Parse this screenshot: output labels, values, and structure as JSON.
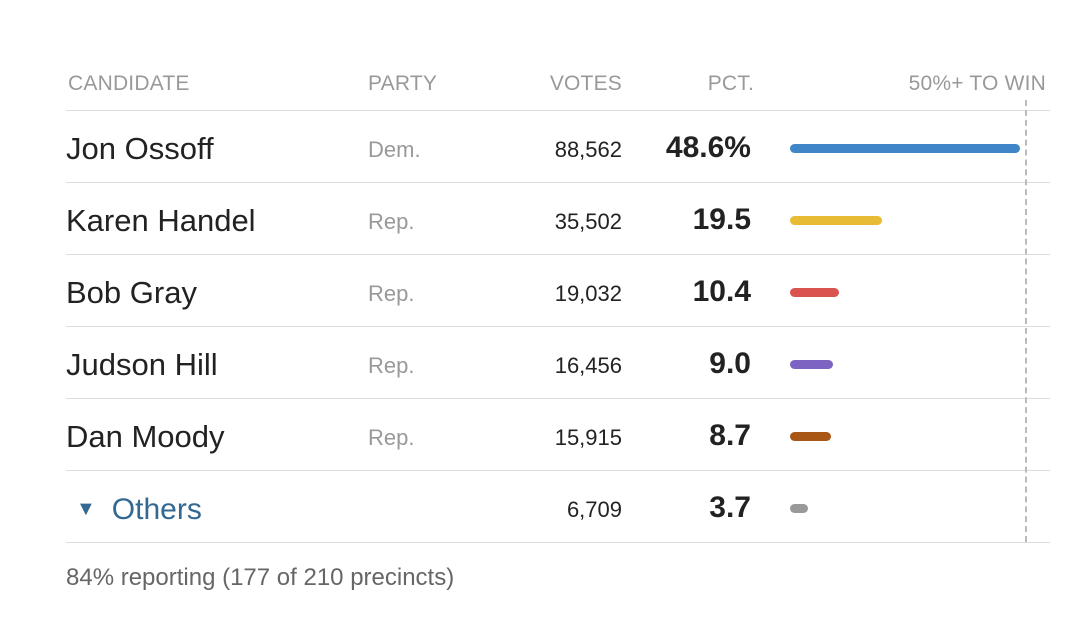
{
  "header": {
    "candidate": "CANDIDATE",
    "party": "PARTY",
    "votes": "VOTES",
    "pct": "PCT.",
    "win": "50%+ TO WIN"
  },
  "rows": [
    {
      "name": "Jon Ossoff",
      "party": "Dem.",
      "votes": "88,562",
      "pct_label": "48.6%",
      "pct": 48.6,
      "color": "#3f86c8"
    },
    {
      "name": "Karen Handel",
      "party": "Rep.",
      "votes": "35,502",
      "pct_label": "19.5",
      "pct": 19.5,
      "color": "#e8bb35"
    },
    {
      "name": "Bob Gray",
      "party": "Rep.",
      "votes": "19,032",
      "pct_label": "10.4",
      "pct": 10.4,
      "color": "#d9534f"
    },
    {
      "name": "Judson Hill",
      "party": "Rep.",
      "votes": "16,456",
      "pct_label": "9.0",
      "pct": 9.0,
      "color": "#7b64c2"
    },
    {
      "name": "Dan Moody",
      "party": "Rep.",
      "votes": "15,915",
      "pct_label": "8.7",
      "pct": 8.7,
      "color": "#a95717"
    }
  ],
  "others": {
    "toggle_icon": "▼",
    "label": "Others",
    "votes": "6,709",
    "pct_label": "3.7",
    "pct": 3.7,
    "color": "#999999"
  },
  "reporting": "84% reporting (177 of 210 precincts)",
  "chart_data": {
    "type": "bar",
    "categories": [
      "Jon Ossoff",
      "Karen Handel",
      "Bob Gray",
      "Judson Hill",
      "Dan Moody",
      "Others"
    ],
    "values": [
      48.6,
      19.5,
      10.4,
      9.0,
      8.7,
      3.7
    ],
    "votes": [
      88562,
      35502,
      19032,
      16456,
      15915,
      6709
    ],
    "threshold": 50,
    "threshold_label": "50%+ TO WIN",
    "xlim": [
      0,
      50
    ]
  }
}
